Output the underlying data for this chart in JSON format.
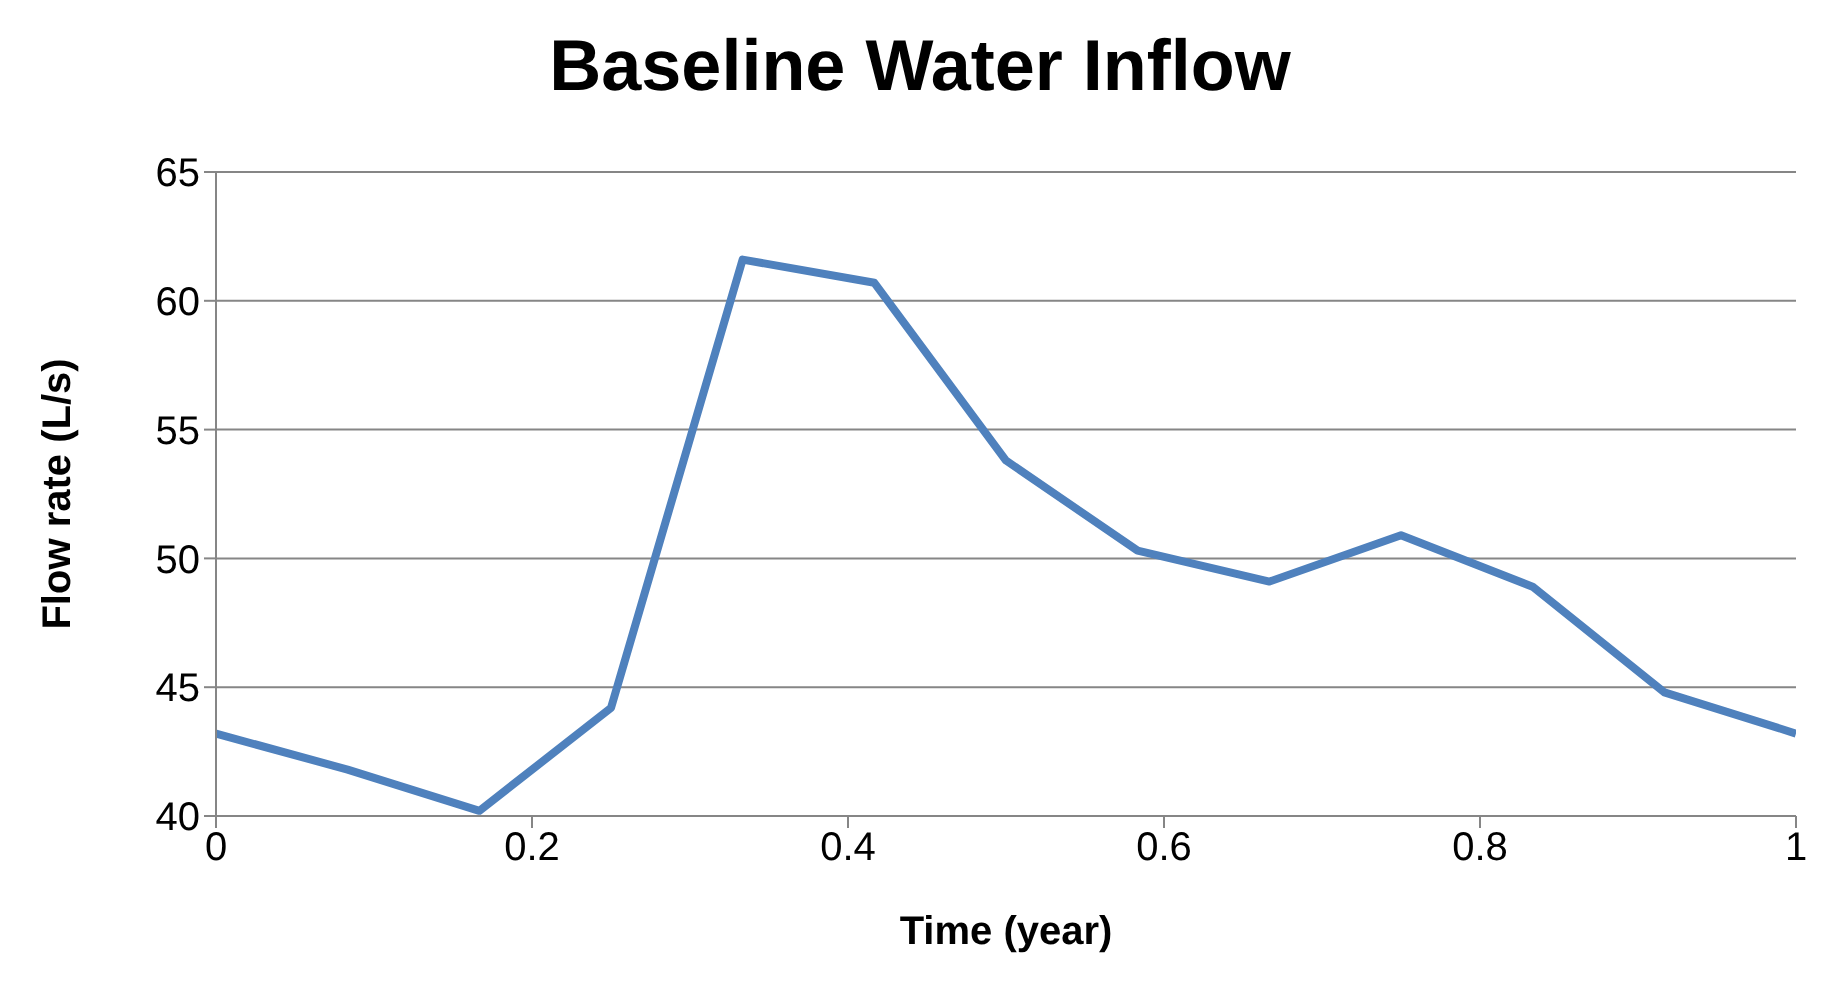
{
  "chart_data": {
    "type": "line",
    "title": "Baseline Water Inflow",
    "xlabel": "Time (year)",
    "ylabel": "Flow rate (L/s)",
    "x": [
      0,
      0.0833,
      0.1667,
      0.25,
      0.3333,
      0.4167,
      0.5,
      0.5833,
      0.6667,
      0.75,
      0.8333,
      0.9167,
      1
    ],
    "series": [
      {
        "color": "#4f81bd",
        "values": [
          43.2,
          41.8,
          40.2,
          44.2,
          61.6,
          60.7,
          53.8,
          50.3,
          49.1,
          50.9,
          48.9,
          44.8,
          43.2
        ]
      }
    ],
    "xlim": [
      0,
      1
    ],
    "xticks": [
      0,
      0.2,
      0.4,
      0.6,
      0.8,
      1
    ],
    "ylim": [
      40,
      65
    ],
    "yticks": [
      40,
      45,
      50,
      55,
      60,
      65
    ],
    "grid": "y",
    "legend": false,
    "marker": "none",
    "line_style": "solid"
  }
}
